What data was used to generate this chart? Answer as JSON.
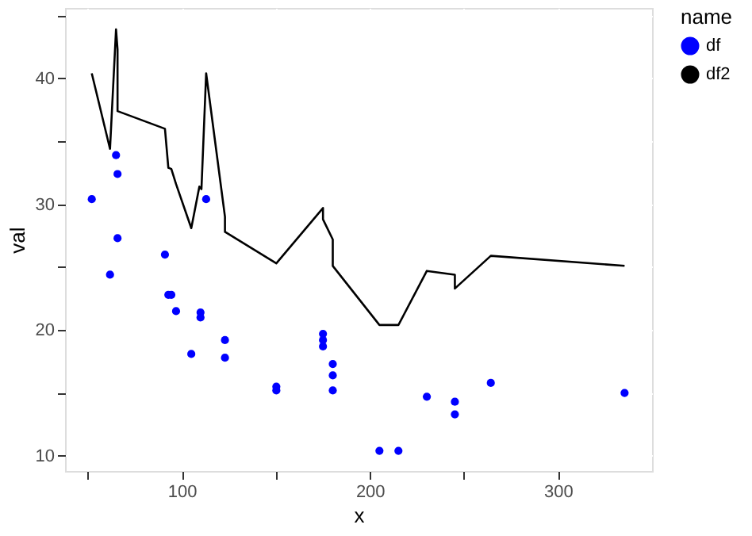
{
  "chart_data": {
    "type": "scatter",
    "xlabel": "x",
    "ylabel": "val",
    "legend_title": "name",
    "legend": "right",
    "grid": true,
    "xlim": [
      38,
      350
    ],
    "xticks": [
      {
        "value": 50,
        "label": null
      },
      100,
      {
        "value": 150,
        "label": null
      },
      200,
      {
        "value": 250,
        "label": null
      },
      300
    ],
    "ylim": [
      8.8,
      45.6
    ],
    "yticks": [
      10,
      {
        "value": 15,
        "label": null
      },
      20,
      {
        "value": 25,
        "label": null
      },
      30,
      {
        "value": 35,
        "label": null
      },
      40,
      {
        "value": 45,
        "label": null
      }
    ],
    "series": [
      {
        "name": "df",
        "color": "#0000ff",
        "x": [
          52.2,
          65.1,
          65.9,
          65.9,
          91.1,
          113,
          61.9,
          92.9,
          94.5,
          97,
          105.1,
          110,
          110,
          123,
          123,
          150.3,
          150.3,
          175.1,
          175.1,
          175.1,
          180.3,
          180.3,
          180.3,
          205.1,
          215.2,
          230.3,
          245.2,
          245.2,
          264.3,
          335.4
        ],
        "values": [
          30.4,
          33.9,
          32.4,
          27.3,
          26.0,
          30.4,
          24.4,
          22.8,
          22.8,
          21.5,
          18.1,
          21.4,
          21.0,
          19.2,
          17.8,
          15.5,
          15.2,
          19.7,
          19.2,
          18.7,
          17.3,
          16.4,
          15.2,
          10.4,
          10.4,
          14.7,
          14.3,
          13.3,
          15.8,
          15.0
        ]
      },
      {
        "name": "df2",
        "type": "line",
        "color": "#000000",
        "line_style": "solid",
        "x": [
          52.2,
          61.9,
          65.1,
          65.9,
          65.9,
          91.1,
          92.9,
          94.5,
          97,
          105.1,
          109.4,
          110.5,
          113,
          123,
          123,
          150.3,
          175.1,
          175.1,
          180.3,
          180.3,
          205.1,
          215.2,
          230.3,
          245.2,
          245.2,
          264.3,
          335.4
        ],
        "values": [
          40.4,
          34.4,
          43.9,
          42.3,
          37.4,
          36.0,
          32.9,
          32.8,
          31.6,
          28.1,
          31.4,
          31.2,
          40.4,
          29.0,
          27.8,
          25.3,
          29.7,
          28.8,
          27.2,
          25.1,
          20.4,
          20.4,
          24.7,
          24.4,
          23.3,
          25.9,
          25.1
        ]
      }
    ]
  }
}
